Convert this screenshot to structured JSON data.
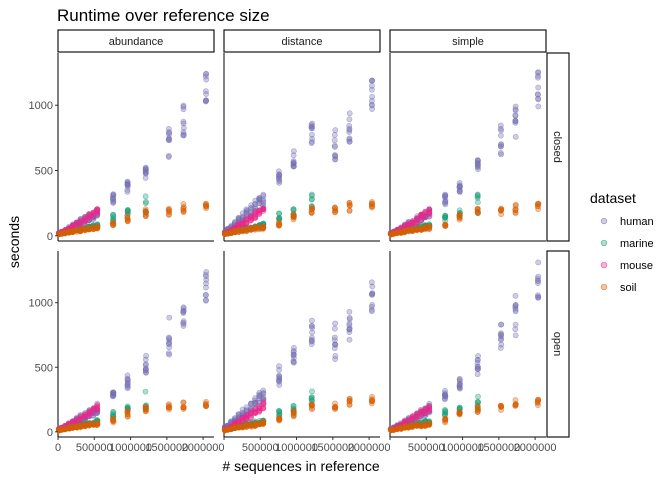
{
  "chart_data": {
    "type": "scatter",
    "title": "Runtime over reference size",
    "xlabel": "# sequences in reference",
    "ylabel": "seconds",
    "facet_cols": [
      "abundance",
      "distance",
      "simple"
    ],
    "facet_rows": [
      "closed",
      "open"
    ],
    "xlim": [
      0,
      2150000
    ],
    "ylim": [
      -40,
      1400
    ],
    "x_ticks": [
      0,
      500000,
      1000000,
      1500000,
      2000000
    ],
    "x_tick_labels_left": [
      "0",
      "500000",
      "1000000",
      "1500000",
      "2000000"
    ],
    "x_tick_labels_other": [
      "",
      "500000",
      "1000000",
      "1500000",
      "2000000"
    ],
    "y_ticks": [
      0,
      500,
      1000
    ],
    "y_tick_labels": [
      "0",
      "500",
      "1000"
    ],
    "grid": false,
    "legend_title": "dataset",
    "legend_position": "right",
    "series": [
      {
        "name": "human",
        "color": "#7570b3"
      },
      {
        "name": "marine",
        "color": "#1b9e77"
      },
      {
        "name": "mouse",
        "color": "#e7298a"
      },
      {
        "name": "soil",
        "color": "#d95f02"
      }
    ],
    "point_opacity": 0.35,
    "x_levels": [
      {
        "x": 14000,
        "human": [
          15,
          25
        ],
        "marine": [
          12,
          20
        ],
        "mouse": [
          14,
          22
        ],
        "soil": [
          10,
          16
        ]
      },
      {
        "x": 50000,
        "human": [
          20,
          35
        ],
        "marine": [
          15,
          25
        ],
        "mouse": [
          18,
          30
        ],
        "soil": [
          14,
          22
        ]
      },
      {
        "x": 98000,
        "human": [
          30,
          50
        ],
        "marine": [
          20,
          32
        ],
        "mouse": [
          25,
          45
        ],
        "soil": [
          18,
          28
        ]
      },
      {
        "x": 150000,
        "human": [
          40,
          70
        ],
        "marine": [
          25,
          40
        ],
        "mouse": [
          40,
          62
        ],
        "soil": [
          22,
          35
        ]
      },
      {
        "x": 203000,
        "human": [
          55,
          90
        ],
        "marine": [
          30,
          50
        ],
        "mouse": [
          55,
          82
        ],
        "soil": [
          26,
          42
        ]
      },
      {
        "x": 257000,
        "human": [
          70,
          110
        ],
        "marine": [
          35,
          55
        ],
        "mouse": [
          70,
          100
        ],
        "soil": [
          30,
          48
        ]
      },
      {
        "x": 310000,
        "human": [
          80,
          130
        ],
        "marine": [
          40,
          62
        ],
        "mouse": [
          85,
          120
        ],
        "soil": [
          34,
          52
        ]
      },
      {
        "x": 372000,
        "human": [
          95,
          150
        ],
        "marine": [
          45,
          70
        ],
        "mouse": [
          100,
          140
        ],
        "soil": [
          38,
          58
        ]
      },
      {
        "x": 430000,
        "human": [
          110,
          170
        ],
        "marine": [
          50,
          78
        ],
        "mouse": [
          120,
          165
        ],
        "soil": [
          42,
          62
        ]
      },
      {
        "x": 488000,
        "human": [
          125,
          190
        ],
        "marine": [
          55,
          85
        ],
        "mouse": [
          140,
          185
        ],
        "soil": [
          46,
          68
        ]
      },
      {
        "x": 540000,
        "human": [
          140,
          210
        ],
        "marine": [
          60,
          90
        ],
        "mouse": [
          160,
          205
        ],
        "soil": [
          50,
          72
        ]
      },
      {
        "x": 760000,
        "human": [
          240,
          320
        ],
        "marine": [
          110,
          165
        ],
        "soil": [
          70,
          100
        ]
      },
      {
        "x": 960000,
        "human": [
          330,
          420
        ],
        "marine": [
          140,
          200
        ],
        "soil": [
          110,
          160
        ]
      },
      {
        "x": 1210000,
        "human": [
          440,
          580
        ],
        "marine": [
          170,
          320
        ],
        "soil": [
          150,
          210
        ]
      },
      {
        "x": 1530000,
        "human": [
          600,
          860
        ],
        "soil": [
          160,
          215
        ]
      },
      {
        "x": 1730000,
        "human": [
          750,
          1010
        ],
        "soil": [
          170,
          245
        ]
      },
      {
        "x": 2040000,
        "human": [
          980,
          1260
        ],
        "soil": [
          200,
          250
        ]
      }
    ]
  }
}
